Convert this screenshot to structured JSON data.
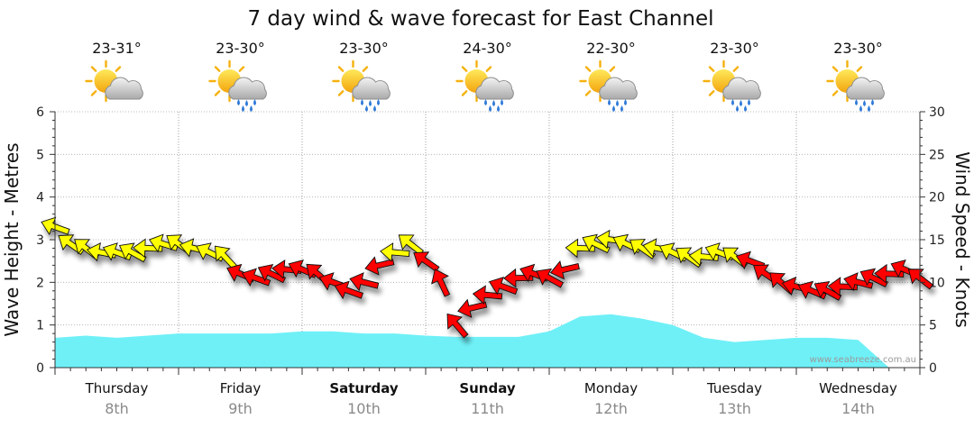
{
  "chart_data": {
    "type": "line",
    "title": "7 day wind & wave forecast for East Channel",
    "ylabel_left": "Wave Height - Metres",
    "ylabel_right": "Wind Speed - Knots",
    "ylim_left": [
      0,
      6
    ],
    "ylim_right": [
      0,
      30
    ],
    "yticks_left": [
      "0",
      "1",
      "2",
      "3",
      "4",
      "5",
      "6"
    ],
    "yticks_right": [
      "0",
      "5",
      "10",
      "15",
      "20",
      "25",
      "30"
    ],
    "grid": true,
    "watermark": "www.seabreeze.com.au",
    "days": [
      {
        "name": "Thursday",
        "date": "8th",
        "temp": "23-31°",
        "icon": "partly-cloudy-icon",
        "bold": false
      },
      {
        "name": "Friday",
        "date": "9th",
        "temp": "23-30°",
        "icon": "cloud-rain-icon",
        "bold": false
      },
      {
        "name": "Saturday",
        "date": "10th",
        "temp": "23-30°",
        "icon": "cloud-rain-icon",
        "bold": true
      },
      {
        "name": "Sunday",
        "date": "11th",
        "temp": "24-30°",
        "icon": "cloud-rain-icon",
        "bold": true
      },
      {
        "name": "Monday",
        "date": "12th",
        "temp": "22-30°",
        "icon": "cloud-rain-icon",
        "bold": false
      },
      {
        "name": "Tuesday",
        "date": "13th",
        "temp": "23-30°",
        "icon": "cloud-rain-icon",
        "bold": false
      },
      {
        "name": "Wednesday",
        "date": "14th",
        "temp": "23-30°",
        "icon": "cloud-rain-icon",
        "bold": false
      }
    ],
    "series": [
      {
        "name": "Wave Height",
        "units": "m",
        "color": "#6ff0f7",
        "t": [
          0,
          0.25,
          0.5,
          0.75,
          1,
          1.25,
          1.5,
          1.75,
          2,
          2.25,
          2.5,
          2.75,
          3,
          3.25,
          3.5,
          3.75,
          4,
          4.25,
          4.5,
          4.75,
          5,
          5.25,
          5.5,
          5.75,
          6,
          6.25,
          6.5,
          6.75
        ],
        "values": [
          0.7,
          0.75,
          0.7,
          0.75,
          0.8,
          0.8,
          0.8,
          0.8,
          0.85,
          0.85,
          0.8,
          0.8,
          0.75,
          0.72,
          0.72,
          0.72,
          0.85,
          1.2,
          1.25,
          1.15,
          1.0,
          0.7,
          0.6,
          0.65,
          0.7,
          0.7,
          0.65,
          0.0
        ]
      },
      {
        "name": "Wind Speed",
        "units": "knots",
        "t": [
          0,
          0.125,
          0.25,
          0.375,
          0.5,
          0.625,
          0.75,
          0.875,
          1,
          1.125,
          1.25,
          1.375,
          1.5,
          1.625,
          1.75,
          1.875,
          2,
          2.125,
          2.25,
          2.375,
          2.5,
          2.625,
          2.75,
          2.875,
          3,
          3.125,
          3.25,
          3.375,
          3.5,
          3.625,
          3.75,
          3.875,
          4,
          4.125,
          4.25,
          4.375,
          4.5,
          4.625,
          4.75,
          4.875,
          5,
          5.125,
          5.25,
          5.375,
          5.5,
          5.625,
          5.75,
          5.875,
          6,
          6.125,
          6.25,
          6.375,
          6.5,
          6.625,
          6.75,
          6.875,
          7
        ],
        "values": [
          16.5,
          14.5,
          14.0,
          13.5,
          13.5,
          13.5,
          14.0,
          14.5,
          14.5,
          14.0,
          13.5,
          13.0,
          11.0,
          10.5,
          11.0,
          11.5,
          11.5,
          11.0,
          10.0,
          9.0,
          10.0,
          12.0,
          13.5,
          14.5,
          12.5,
          10.0,
          5.0,
          7.0,
          8.5,
          9.5,
          10.5,
          11.0,
          10.5,
          11.5,
          14.0,
          14.5,
          15.0,
          14.5,
          14.0,
          14.0,
          13.5,
          13.0,
          13.0,
          13.5,
          13.0,
          12.5,
          11.0,
          10.0,
          9.5,
          9.0,
          9.0,
          9.5,
          10.0,
          10.5,
          11.0,
          11.5,
          10.5
        ]
      }
    ]
  }
}
